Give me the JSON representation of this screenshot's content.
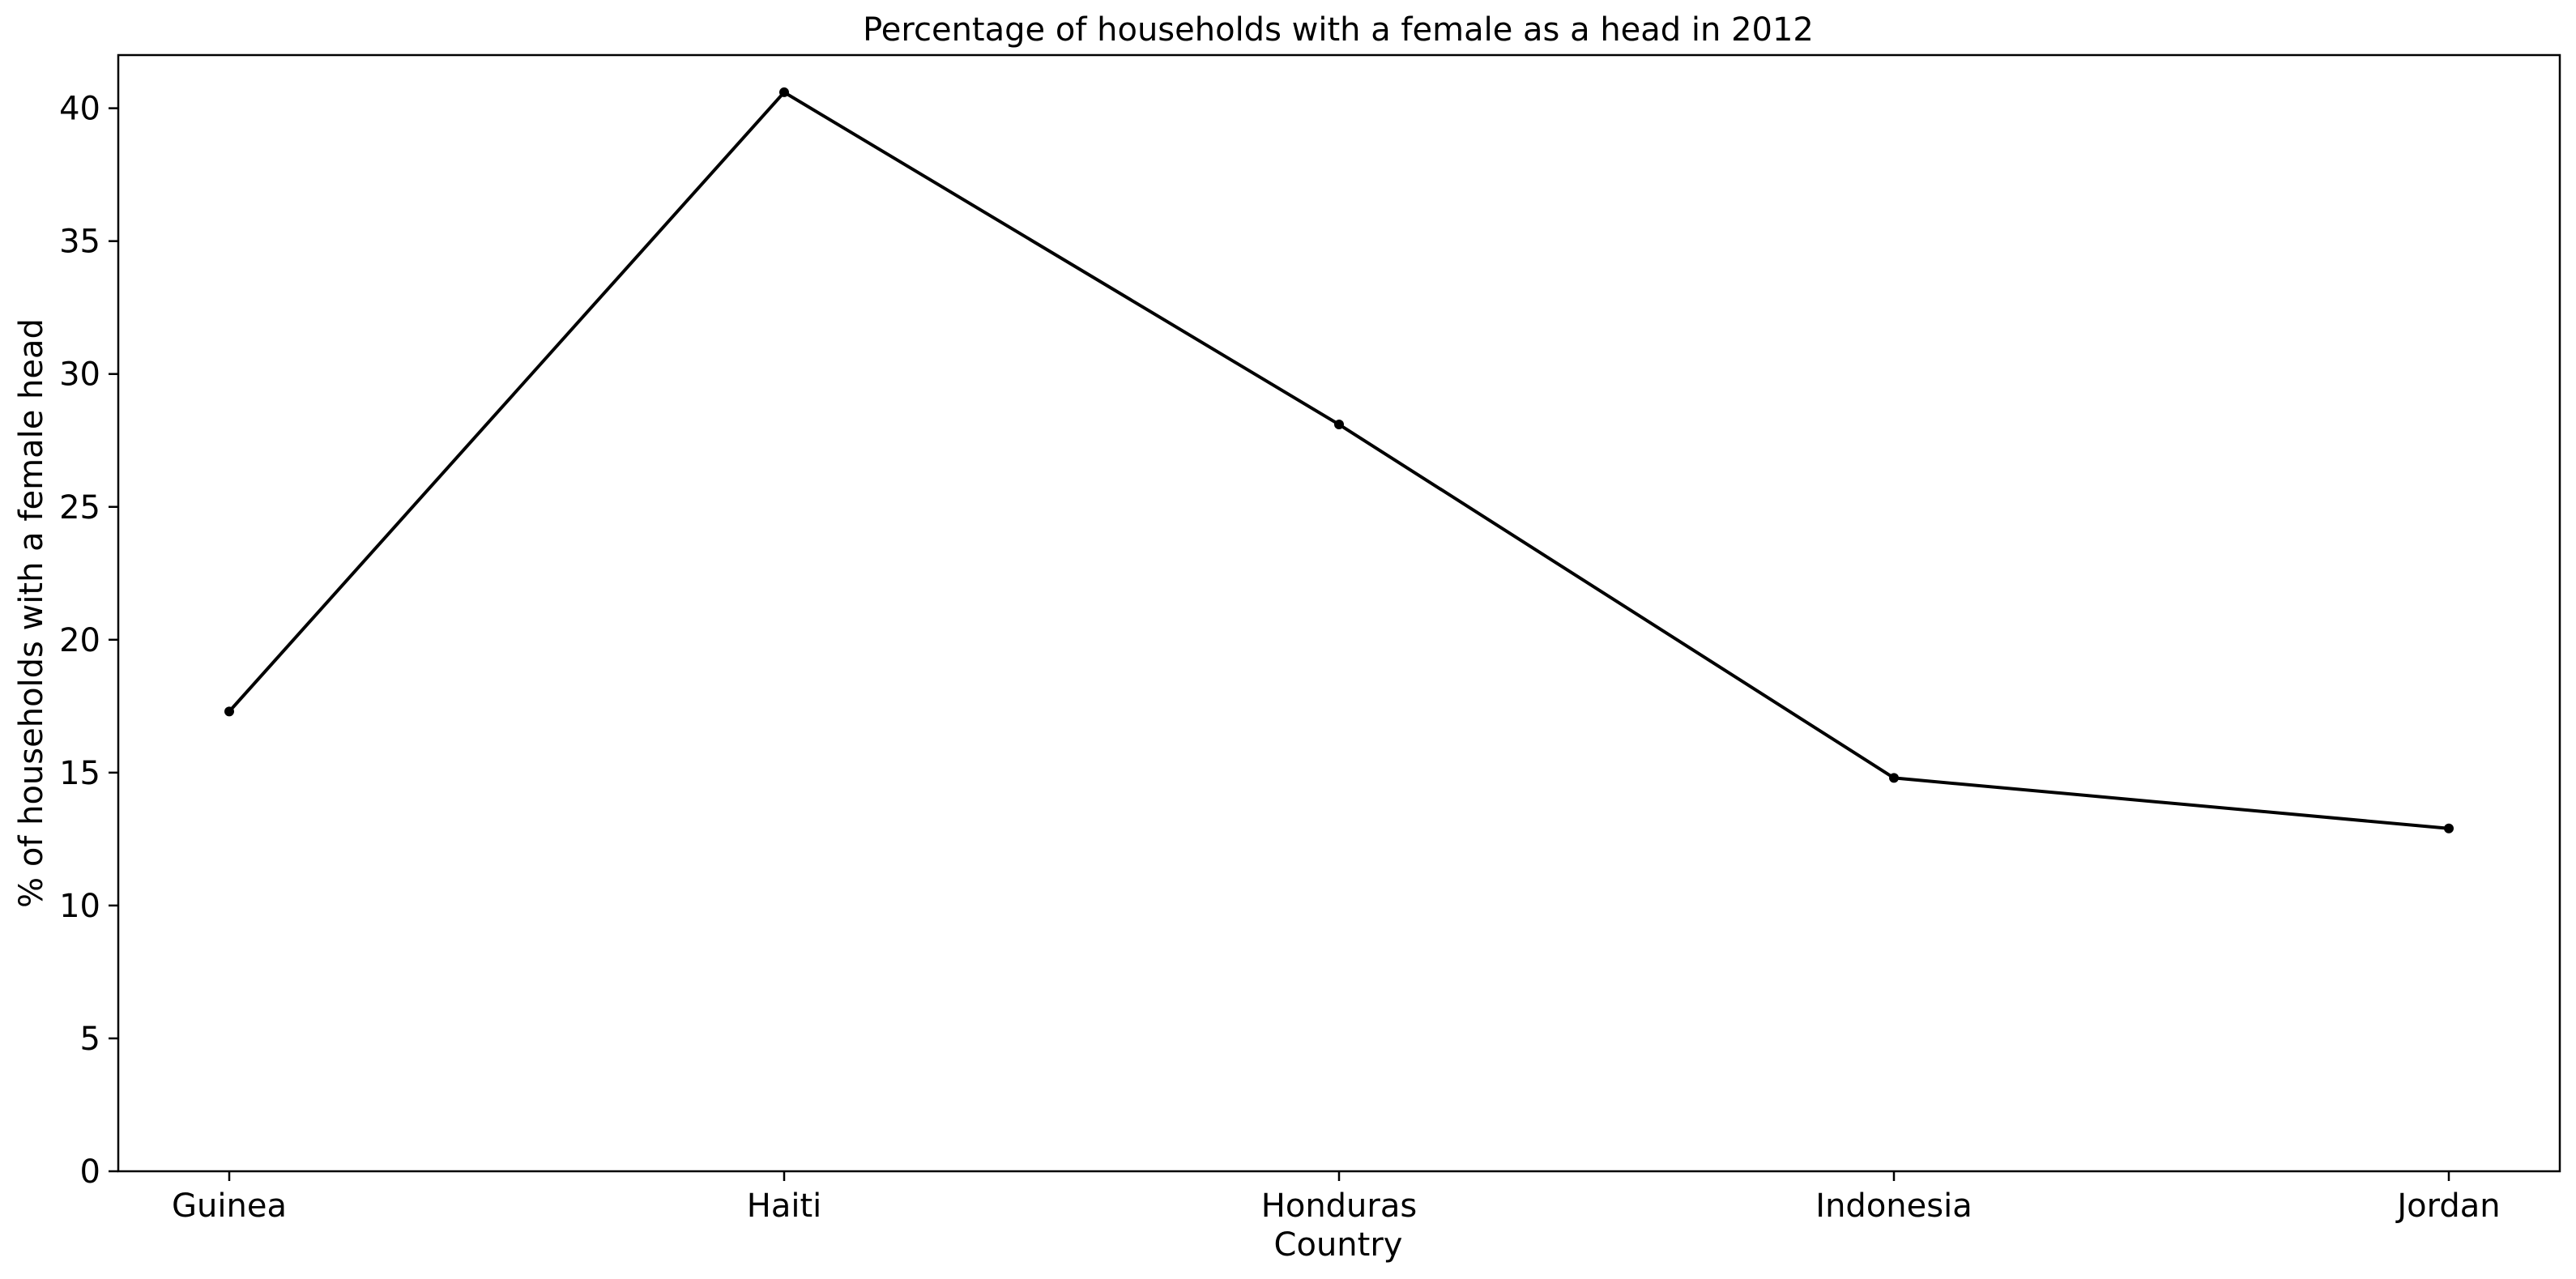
{
  "chart_data": {
    "type": "line",
    "title": "Percentage of households with a female as a head in 2012",
    "xlabel": "Country",
    "ylabel": "% of households with a female head",
    "categories": [
      "Guinea",
      "Haiti",
      "Honduras",
      "Indonesia",
      "Jordan"
    ],
    "series": [
      {
        "values": [
          17.3,
          40.6,
          28.1,
          14.8,
          12.9
        ],
        "color": "#000000"
      }
    ],
    "ylim": [
      0,
      42
    ],
    "yticks": [
      0,
      5,
      10,
      15,
      20,
      25,
      30,
      35,
      40
    ],
    "grid": false,
    "legend": "none"
  }
}
